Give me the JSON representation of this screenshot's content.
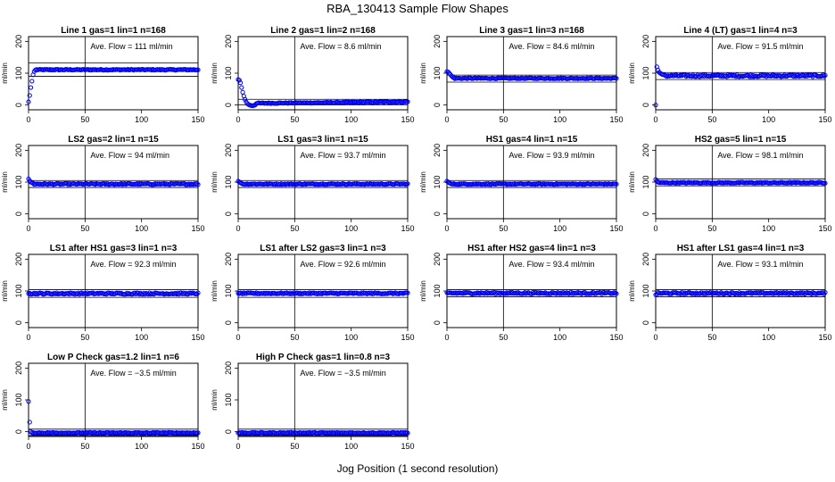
{
  "title": "RBA_130413  Sample Flow Shapes",
  "shared_xlabel": "Jog Position (1 second resolution)",
  "colors": {
    "points": "#0000ee",
    "axes": "#000000"
  },
  "chart_data": [
    {
      "type": "scatter",
      "title": "Line 1 gas=1 lin=1 n=168",
      "ylabel": "ml/min",
      "xlim": [
        0,
        150
      ],
      "ylim": [
        -15,
        215
      ],
      "xticks": [
        0,
        50,
        100,
        150
      ],
      "yticks": [
        0,
        100,
        200
      ],
      "vline": 50,
      "hlines": [
        90,
        132
      ],
      "annotation": "Ave. Flow =  111  ml/min",
      "profile": {
        "start": [
          10,
          30,
          55,
          75,
          95,
          105,
          110
        ],
        "level": 111,
        "noise": 1.5
      }
    },
    {
      "type": "scatter",
      "title": "Line 2 gas=1 lin=2 n=168",
      "ylabel": "ml/min",
      "xlim": [
        0,
        150
      ],
      "ylim": [
        -15,
        215
      ],
      "xticks": [
        0,
        50,
        100,
        150
      ],
      "yticks": [
        0,
        100,
        200
      ],
      "vline": 50,
      "hlines": [
        0,
        18
      ],
      "annotation": "Ave. Flow =  8.6  ml/min",
      "profile": {
        "start": [
          80,
          78,
          70,
          55,
          40,
          28,
          18,
          10,
          5,
          2,
          0,
          -1,
          -2,
          -2,
          -1,
          0
        ],
        "level": 5,
        "noise": 1.5,
        "ramp_to": 10
      }
    },
    {
      "type": "scatter",
      "title": "Line 3 gas=1 lin=3 n=168",
      "ylabel": "ml/min",
      "xlim": [
        0,
        150
      ],
      "ylim": [
        -15,
        215
      ],
      "xticks": [
        0,
        50,
        100,
        150
      ],
      "yticks": [
        0,
        100,
        200
      ],
      "vline": 50,
      "hlines": [
        72,
        94
      ],
      "annotation": "Ave. Flow =  84.6  ml/min",
      "profile": {
        "start": [
          105,
          104,
          100,
          96,
          92,
          88,
          86
        ],
        "level": 84,
        "noise": 1.5
      }
    },
    {
      "type": "scatter",
      "title": "Line 4 (LT) gas=1 lin=4 n=3",
      "ylabel": "ml/min",
      "xlim": [
        0,
        150
      ],
      "ylim": [
        -15,
        215
      ],
      "xticks": [
        0,
        50,
        100,
        150
      ],
      "yticks": [
        0,
        100,
        200
      ],
      "vline": 50,
      "hlines": [
        80,
        102
      ],
      "annotation": "Ave. Flow =  91.5  ml/min",
      "profile": {
        "start": [
          0,
          120,
          110,
          103,
          100,
          98,
          96,
          95,
          94
        ],
        "level": 92,
        "noise": 3
      }
    },
    {
      "type": "scatter",
      "title": "LS2 gas=2 lin=1 n=15",
      "ylabel": "ml/min",
      "xlim": [
        0,
        150
      ],
      "ylim": [
        -15,
        215
      ],
      "xticks": [
        0,
        50,
        100,
        150
      ],
      "yticks": [
        0,
        100,
        200
      ],
      "vline": 50,
      "hlines": [
        83,
        105
      ],
      "annotation": "Ave. Flow =  94  ml/min",
      "profile": {
        "start": [
          110,
          104,
          100,
          98,
          97
        ],
        "level": 94,
        "noise": 2
      }
    },
    {
      "type": "scatter",
      "title": "LS1 gas=3 lin=1 n=15",
      "ylabel": "ml/min",
      "xlim": [
        0,
        150
      ],
      "ylim": [
        -15,
        215
      ],
      "xticks": [
        0,
        50,
        100,
        150
      ],
      "yticks": [
        0,
        100,
        200
      ],
      "vline": 50,
      "hlines": [
        83,
        105
      ],
      "annotation": "Ave. Flow =  93.7  ml/min",
      "profile": {
        "start": [
          103,
          100,
          98,
          96
        ],
        "level": 94,
        "noise": 1.5
      }
    },
    {
      "type": "scatter",
      "title": "HS1 gas=4 lin=1 n=15",
      "ylabel": "ml/min",
      "xlim": [
        0,
        150
      ],
      "ylim": [
        -15,
        215
      ],
      "xticks": [
        0,
        50,
        100,
        150
      ],
      "yticks": [
        0,
        100,
        200
      ],
      "vline": 50,
      "hlines": [
        83,
        105
      ],
      "annotation": "Ave. Flow =  93.9  ml/min",
      "profile": {
        "start": [
          103,
          100,
          98,
          96
        ],
        "level": 94,
        "noise": 1.5
      }
    },
    {
      "type": "scatter",
      "title": "HS2 gas=5 lin=1 n=15",
      "ylabel": "ml/min",
      "xlim": [
        0,
        150
      ],
      "ylim": [
        -15,
        215
      ],
      "xticks": [
        0,
        50,
        100,
        150
      ],
      "yticks": [
        0,
        100,
        200
      ],
      "vline": 50,
      "hlines": [
        88,
        110
      ],
      "annotation": "Ave. Flow =  98.1  ml/min",
      "profile": {
        "start": [
          108,
          103,
          100,
          99
        ],
        "level": 98,
        "noise": 1.5
      }
    },
    {
      "type": "scatter",
      "title": "LS1 after HS1 gas=3 lin=1 n=3",
      "ylabel": "ml/min",
      "xlim": [
        0,
        150
      ],
      "ylim": [
        -15,
        215
      ],
      "xticks": [
        0,
        50,
        100,
        150
      ],
      "yticks": [
        0,
        100,
        200
      ],
      "vline": 50,
      "hlines": [
        80,
        104
      ],
      "annotation": "Ave. Flow =  92.3  ml/min",
      "profile": {
        "start": [
          92,
          93
        ],
        "level": 92,
        "noise": 2.5
      }
    },
    {
      "type": "scatter",
      "title": "LS1 after LS2 gas=3 lin=1 n=3",
      "ylabel": "ml/min",
      "xlim": [
        0,
        150
      ],
      "ylim": [
        -15,
        215
      ],
      "xticks": [
        0,
        50,
        100,
        150
      ],
      "yticks": [
        0,
        100,
        200
      ],
      "vline": 50,
      "hlines": [
        80,
        104
      ],
      "annotation": "Ave. Flow =  92.6  ml/min",
      "profile": {
        "start": [
          93,
          92
        ],
        "level": 92.6,
        "noise": 2
      }
    },
    {
      "type": "scatter",
      "title": "HS1 after HS2 gas=4 lin=1 n=3",
      "ylabel": "ml/min",
      "xlim": [
        0,
        150
      ],
      "ylim": [
        -15,
        215
      ],
      "xticks": [
        0,
        50,
        100,
        150
      ],
      "yticks": [
        0,
        100,
        200
      ],
      "vline": 50,
      "hlines": [
        82,
        104
      ],
      "annotation": "Ave. Flow =  93.4  ml/min",
      "profile": {
        "start": [
          95,
          94
        ],
        "level": 93.4,
        "noise": 2.5
      }
    },
    {
      "type": "scatter",
      "title": "HS1 after LS1 gas=4 lin=1 n=3",
      "ylabel": "ml/min",
      "xlim": [
        0,
        150
      ],
      "ylim": [
        -15,
        215
      ],
      "xticks": [
        0,
        50,
        100,
        150
      ],
      "yticks": [
        0,
        100,
        200
      ],
      "vline": 50,
      "hlines": [
        82,
        104
      ],
      "annotation": "Ave. Flow =  93.1  ml/min",
      "profile": {
        "start": [
          88,
          90
        ],
        "level": 93,
        "noise": 2.5
      }
    },
    {
      "type": "scatter",
      "title": "Low P Check gas=1.2 lin=1 n=6",
      "ylabel": "ml/min",
      "xlim": [
        0,
        150
      ],
      "ylim": [
        -15,
        215
      ],
      "xticks": [
        0,
        50,
        100,
        150
      ],
      "yticks": [
        0,
        100,
        200
      ],
      "vline": 50,
      "hlines": [
        -12,
        8
      ],
      "annotation": "Ave. Flow =  −3.5  ml/min",
      "profile": {
        "start": [
          95,
          30,
          0,
          -3
        ],
        "level": -3.5,
        "noise": 1.5
      }
    },
    {
      "type": "scatter",
      "title": "High P Check gas=1 lin=0.8 n=3",
      "ylabel": "ml/min",
      "xlim": [
        0,
        150
      ],
      "ylim": [
        -15,
        215
      ],
      "xticks": [
        0,
        50,
        100,
        150
      ],
      "yticks": [
        0,
        100,
        200
      ],
      "vline": 50,
      "hlines": [
        -12,
        8
      ],
      "annotation": "Ave. Flow =  −3.5  ml/min",
      "profile": {
        "start": [
          -4,
          -3
        ],
        "level": -3.5,
        "noise": 1.5
      }
    }
  ]
}
